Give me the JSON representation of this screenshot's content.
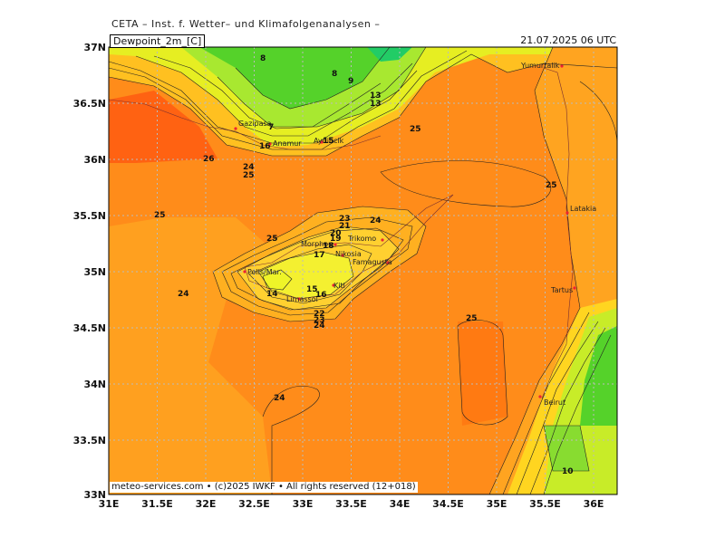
{
  "header": {
    "text": "CETA – Inst. f. Wetter– und Klimafolgenanalysen –"
  },
  "map": {
    "variable_label": "Dewpoint_2m_[C]",
    "valid_time": "21.07.2025 06 UTC",
    "footer": "meteo-services.com  •  (c)2025 IWKF  •  All rights reserved  (12+018)",
    "lat_labels": [
      "37N",
      "36.5N",
      "36N",
      "35.5N",
      "35N",
      "34.5N",
      "34N",
      "33.5N",
      "33N"
    ],
    "lon_labels": [
      "31E",
      "31.5E",
      "32E",
      "32.5E",
      "33E",
      "33.5E",
      "34E",
      "34.5E",
      "35E",
      "35.5E",
      "36E"
    ],
    "cities": [
      "Yumurtalik",
      "Gazipasa",
      "Anamur",
      "Aydincik",
      "Trikomo",
      "Morphou",
      "Nikosia",
      "Famagusta",
      "Polis/Mar.",
      "Kiti",
      "Limassol",
      "Latakia",
      "Tartus",
      "Beirut"
    ],
    "contour_values": [
      "8",
      "8",
      "9",
      "13",
      "13",
      "7",
      "16",
      "15",
      "25",
      "26",
      "24",
      "25",
      "25",
      "25",
      "24",
      "23",
      "21",
      "20",
      "19",
      "18",
      "17",
      "14",
      "15",
      "16",
      "22",
      "23",
      "24",
      "24",
      "24",
      "25",
      "10",
      "16"
    ],
    "colors": {
      "land_green": "#33cc33",
      "orange": "#ff8c1a",
      "deep_orange": "#ff6a10",
      "yellow": "#ffff44"
    }
  }
}
